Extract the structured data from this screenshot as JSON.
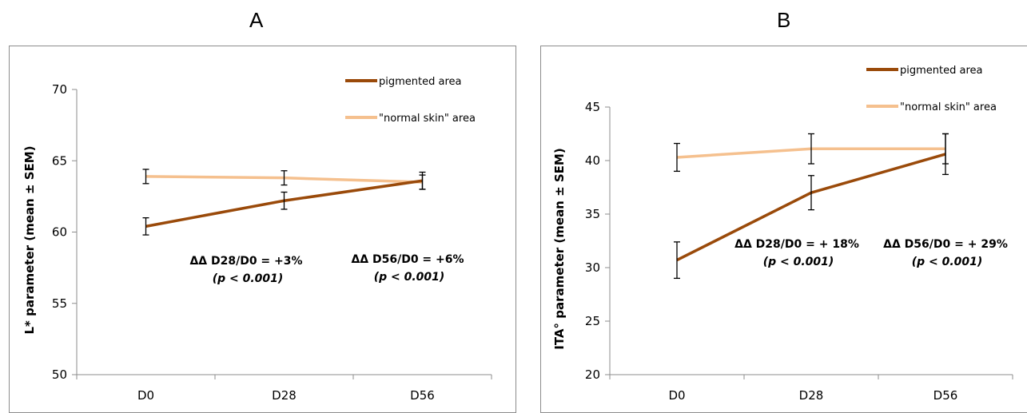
{
  "chart_data": [
    {
      "type": "line",
      "panel_label": "A",
      "ylabel": "L* parameter (mean ± SEM)",
      "xlabel": "",
      "categories": [
        "D0",
        "D28",
        "D56"
      ],
      "ylim": [
        50,
        70
      ],
      "yticks": [
        "50",
        "55",
        "60",
        "65",
        "70"
      ],
      "legend_position": "top-right",
      "series": [
        {
          "name": "pigmented area",
          "color": "#9a4a0a",
          "values": [
            60.4,
            62.2,
            63.6
          ],
          "err": [
            0.6,
            0.6,
            0.6
          ]
        },
        {
          "name": "\"normal skin\" area",
          "color": "#f5c08e",
          "values": [
            63.9,
            63.8,
            63.5
          ],
          "err": [
            0.5,
            0.5,
            0.5
          ]
        }
      ],
      "annotations": [
        {
          "line1": "ΔΔ D28/D0 = +3%",
          "line2": "(p < 0.001)"
        },
        {
          "line1": "ΔΔ D56/D0 = +6%",
          "line2": "(p < 0.001)"
        }
      ]
    },
    {
      "type": "line",
      "panel_label": "B",
      "ylabel": "ITA° parameter (mean ± SEM)",
      "xlabel": "",
      "categories": [
        "D0",
        "D28",
        "D56"
      ],
      "ylim": [
        20,
        45
      ],
      "yticks": [
        "20",
        "25",
        "30",
        "35",
        "40",
        "45"
      ],
      "legend_position": "top-right",
      "series": [
        {
          "name": "pigmented area",
          "color": "#9a4a0a",
          "values": [
            30.7,
            37.0,
            40.6
          ],
          "err": [
            1.7,
            1.6,
            1.9
          ]
        },
        {
          "name": "\"normal skin\" area",
          "color": "#f5c08e",
          "values": [
            40.3,
            41.1,
            41.1
          ],
          "err": [
            1.3,
            1.4,
            1.4
          ]
        }
      ],
      "annotations": [
        {
          "line1": "ΔΔ D28/D0 = + 18%",
          "line2": "(p < 0.001)"
        },
        {
          "line1": "ΔΔ D56/D0 = + 29%",
          "line2": "(p < 0.001)"
        }
      ]
    }
  ]
}
